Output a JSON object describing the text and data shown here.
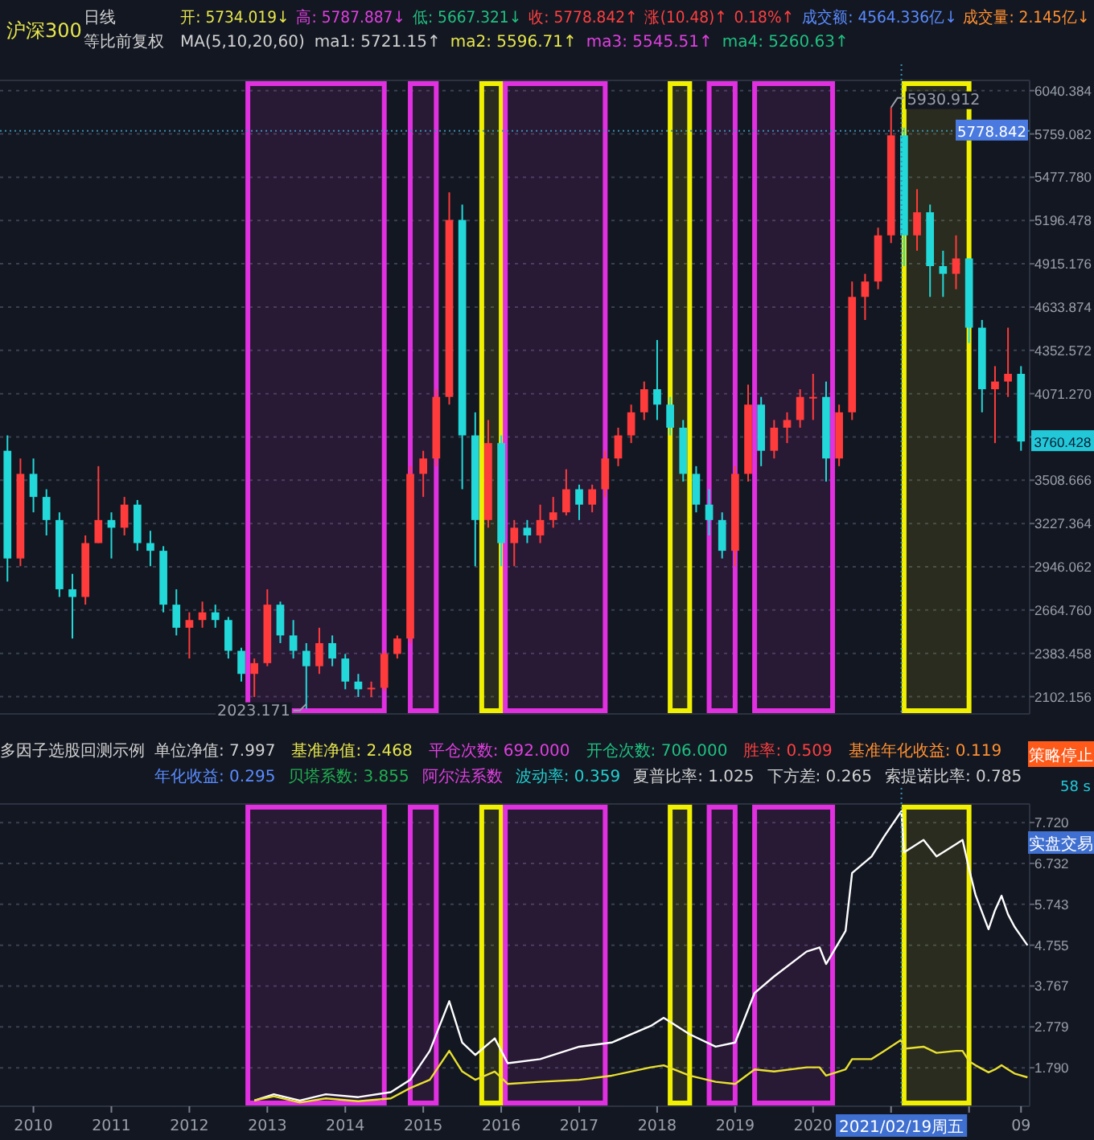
{
  "chart_data": [
    {
      "type": "candlestick",
      "title": "沪深300",
      "subtitle": "日线",
      "annotations": [
        "等比前复权",
        "开: 5734.019↓",
        "高: 5787.887↓",
        "低: 5667.321↓",
        "收: 5778.842↑",
        "涨(10.48)↑",
        "0.18%↑",
        "成交额: 4564.336亿↓",
        "成交量: 2.145亿↓",
        "MA(5,10,20,60)",
        "ma1: 5721.15↑",
        "ma2: 5596.71↑",
        "ma3: 5545.51↑",
        "ma4: 5260.63↑",
        "5930.912",
        "2023.171",
        "3760.428"
      ],
      "x": [
        "2009-09",
        "2009-11",
        "2010-01",
        "2010-03",
        "2010-05",
        "2010-07",
        "2010-09",
        "2010-11",
        "2011-01",
        "2011-03",
        "2011-05",
        "2011-07",
        "2011-09",
        "2011-11",
        "2012-01",
        "2012-03",
        "2012-05",
        "2012-07",
        "2012-09",
        "2012-11",
        "2013-01",
        "2013-03",
        "2013-05",
        "2013-07",
        "2013-09",
        "2013-11",
        "2014-01",
        "2014-03",
        "2014-05",
        "2014-07",
        "2014-09",
        "2014-11",
        "2015-01",
        "2015-03",
        "2015-05",
        "2015-07",
        "2015-09",
        "2015-11",
        "2016-01",
        "2016-03",
        "2016-05",
        "2016-07",
        "2016-09",
        "2016-11",
        "2017-01",
        "2017-03",
        "2017-05",
        "2017-07",
        "2017-09",
        "2017-11",
        "2018-01",
        "2018-03",
        "2018-05",
        "2018-07",
        "2018-09",
        "2018-11",
        "2019-01",
        "2019-03",
        "2019-05",
        "2019-07",
        "2019-09",
        "2019-11",
        "2020-01",
        "2020-03",
        "2020-05",
        "2020-07",
        "2020-09",
        "2020-11",
        "2021-01",
        "2021-03",
        "2021-05",
        "2021-07",
        "2021-09",
        "2021-11",
        "2022-01",
        "2022-03",
        "2022-05",
        "2022-07",
        "2022-09"
      ],
      "ohlc": [
        [
          3700,
          3800,
          2850,
          3000
        ],
        [
          3000,
          3650,
          2950,
          3550
        ],
        [
          3550,
          3650,
          3300,
          3400
        ],
        [
          3400,
          3450,
          3150,
          3250
        ],
        [
          3250,
          3300,
          2750,
          2800
        ],
        [
          2800,
          2900,
          2480,
          2750
        ],
        [
          2750,
          3150,
          2700,
          3100
        ],
        [
          3100,
          3600,
          3100,
          3250
        ],
        [
          3250,
          3300,
          3000,
          3200
        ],
        [
          3200,
          3400,
          3150,
          3350
        ],
        [
          3350,
          3380,
          3050,
          3100
        ],
        [
          3100,
          3180,
          2950,
          3050
        ],
        [
          3050,
          3080,
          2650,
          2700
        ],
        [
          2700,
          2800,
          2500,
          2550
        ],
        [
          2550,
          2650,
          2350,
          2600
        ],
        [
          2600,
          2720,
          2550,
          2650
        ],
        [
          2650,
          2700,
          2550,
          2600
        ],
        [
          2600,
          2620,
          2350,
          2400
        ],
        [
          2400,
          2420,
          2200,
          2250
        ],
        [
          2250,
          2350,
          2100,
          2320
        ],
        [
          2320,
          2800,
          2300,
          2700
        ],
        [
          2700,
          2720,
          2450,
          2500
        ],
        [
          2500,
          2600,
          2350,
          2400
        ],
        [
          2400,
          2450,
          2023.171,
          2300
        ],
        [
          2300,
          2550,
          2250,
          2450
        ],
        [
          2450,
          2500,
          2300,
          2350
        ],
        [
          2350,
          2380,
          2150,
          2200
        ],
        [
          2200,
          2250,
          2100,
          2150
        ],
        [
          2150,
          2200,
          2100,
          2160
        ],
        [
          2160,
          2400,
          2140,
          2380
        ],
        [
          2380,
          2500,
          2350,
          2480
        ],
        [
          2480,
          3600,
          2450,
          3550
        ],
        [
          3550,
          3700,
          3400,
          3650
        ],
        [
          3650,
          4100,
          3600,
          4050
        ],
        [
          4050,
          5380,
          4000,
          5200
        ],
        [
          5200,
          5300,
          3450,
          3800
        ],
        [
          3800,
          3950,
          2950,
          3250
        ],
        [
          3250,
          3900,
          3200,
          3750
        ],
        [
          3750,
          3800,
          2950,
          3100
        ],
        [
          3100,
          3250,
          2950,
          3200
        ],
        [
          3200,
          3250,
          3100,
          3150
        ],
        [
          3150,
          3350,
          3100,
          3250
        ],
        [
          3250,
          3400,
          3200,
          3300
        ],
        [
          3300,
          3580,
          3280,
          3450
        ],
        [
          3450,
          3480,
          3250,
          3350
        ],
        [
          3350,
          3480,
          3300,
          3450
        ],
        [
          3450,
          3700,
          3400,
          3650
        ],
        [
          3650,
          3850,
          3600,
          3800
        ],
        [
          3800,
          4000,
          3750,
          3950
        ],
        [
          3950,
          4150,
          3900,
          4100
        ],
        [
          4100,
          4420,
          3900,
          4000
        ],
        [
          4000,
          4050,
          3800,
          3850
        ],
        [
          3850,
          3900,
          3500,
          3550
        ],
        [
          3550,
          3600,
          3300,
          3350
        ],
        [
          3350,
          3450,
          3150,
          3250
        ],
        [
          3250,
          3300,
          3000,
          3050
        ],
        [
          3050,
          3600,
          2950,
          3550
        ],
        [
          3550,
          4130,
          3500,
          4000
        ],
        [
          4000,
          4050,
          3600,
          3700
        ],
        [
          3700,
          3900,
          3650,
          3850
        ],
        [
          3850,
          3950,
          3750,
          3900
        ],
        [
          3900,
          4100,
          3850,
          4050
        ],
        [
          4050,
          4200,
          3900,
          4050
        ],
        [
          4050,
          4150,
          3500,
          3650
        ],
        [
          3650,
          4000,
          3600,
          3950
        ],
        [
          3950,
          4800,
          3900,
          4700
        ],
        [
          4700,
          4850,
          4550,
          4800
        ],
        [
          4800,
          5150,
          4750,
          5100
        ],
        [
          5100,
          5930.912,
          5050,
          5750
        ],
        [
          5750,
          5800,
          4900,
          5100
        ],
        [
          5100,
          5400,
          5000,
          5250
        ],
        [
          5250,
          5300,
          4700,
          4900
        ],
        [
          4900,
          5000,
          4700,
          4850
        ],
        [
          4850,
          5100,
          4750,
          4950
        ],
        [
          4950,
          4950,
          4400,
          4500
        ],
        [
          4500,
          4550,
          3950,
          4100
        ],
        [
          4100,
          4250,
          3750,
          4150
        ],
        [
          4150,
          4500,
          4050,
          4200
        ],
        [
          4200,
          4250,
          3700,
          3760.428
        ]
      ],
      "xlim": [
        "2009-07-27",
        "2022-10-11"
      ],
      "ylim": [
        1990,
        6107
      ],
      "yticks": [
        2102.156,
        2383.458,
        {
          "value": 2664.76,
          "label": "2664.760"
        },
        2946.062,
        3227.364,
        3508.666,
        {
          "value": 3789.968,
          "label": null
        },
        {
          "value": 4071.27,
          "label": "4071.270"
        },
        4352.572,
        4633.874,
        4915.176,
        5196.478,
        {
          "value": 5477.78,
          "label": "5477.780"
        },
        5759.082,
        6040.384
      ],
      "grid": "y",
      "tick_labels": "y",
      "ref_lines": [
        {
          "axis": "x",
          "value": "2021-02-19",
          "label": null,
          "color": "#3a8fb0",
          "line_style": "dotted"
        },
        {
          "axis": "y",
          "value": 5778.842,
          "label": "5778.842",
          "color": "#3a8fb0",
          "line_style": "dotted"
        }
      ],
      "bands": [
        {
          "axis": "x",
          "from": "2012-10",
          "to": "2014-07",
          "label": null,
          "color": "#e030e0"
        },
        {
          "axis": "x",
          "from": "2014-11",
          "to": "2015-03",
          "label": null,
          "color": "#e030e0"
        },
        {
          "axis": "x",
          "from": "2015-10",
          "to": "2016-01",
          "label": null,
          "color": "#f0f000"
        },
        {
          "axis": "x",
          "from": "2016-01-20",
          "to": "2017-05",
          "label": null,
          "color": "#e030e0"
        },
        {
          "axis": "x",
          "from": "2018-03",
          "to": "2018-06",
          "label": null,
          "color": "#f0f000"
        },
        {
          "axis": "x",
          "from": "2018-09",
          "to": "2019-01",
          "label": null,
          "color": "#e030e0"
        },
        {
          "axis": "x",
          "from": "2019-04",
          "to": "2020-04",
          "label": null,
          "color": "#e030e0"
        },
        {
          "axis": "x",
          "from": "2021-03",
          "to": "2022-01",
          "label": null,
          "color": "#f0f000"
        }
      ]
    },
    {
      "type": "line",
      "title": "多因子选股回测示例",
      "annotations": [
        "单位净值: 7.997",
        "基准净值: 2.468",
        "平仓次数: 692.000",
        "开仓次数: 706.000",
        "胜率: 0.509",
        "基准年化收益: 0.119",
        "年化收益: 0.295",
        "贝塔系数: 3.855",
        "阿尔法系数",
        "波动率: 0.359",
        "夏普比率: 1.025",
        "下方差: 0.265",
        "索提诺比率: 0.785",
        "策略停止",
        "58 s",
        "实盘交易"
      ],
      "series": [
        {
          "color": "#ffffff",
          "x": [
            "2012-11",
            "2013-02",
            "2013-06",
            "2013-10",
            "2014-03",
            "2014-08",
            "2014-11",
            "2015-02",
            "2015-05",
            "2015-07",
            "2015-09",
            "2015-12",
            "2016-02",
            "2016-07",
            "2017-01",
            "2017-06",
            "2017-12",
            "2018-02",
            "2018-06",
            "2018-10",
            "2019-01",
            "2019-04",
            "2019-07",
            "2019-12",
            "2020-02",
            "2020-03",
            "2020-06",
            "2020-07",
            "2020-10",
            "2020-12",
            "2021-02-19",
            "2021-03",
            "2021-06",
            "2021-08",
            "2021-11",
            "2021-12",
            "2022-01",
            "2022-02",
            "2022-04",
            "2022-05",
            "2022-06",
            "2022-07",
            "2022-08",
            "2022-10-01"
          ],
          "values": [
            1.0,
            1.15,
            1.0,
            1.15,
            1.08,
            1.2,
            1.5,
            2.2,
            3.4,
            2.4,
            2.1,
            2.5,
            1.9,
            2.0,
            2.3,
            2.4,
            2.8,
            3.0,
            2.6,
            2.3,
            2.4,
            3.6,
            4.0,
            4.6,
            4.7,
            4.3,
            5.1,
            6.5,
            6.9,
            7.4,
            7.997,
            7.0,
            7.3,
            6.9,
            7.2,
            7.3,
            6.6,
            5.97,
            5.14,
            5.6,
            5.95,
            5.5,
            5.2,
            4.75
          ]
        },
        {
          "color": "#e8e030",
          "x": [
            "2012-11",
            "2013-02",
            "2013-06",
            "2013-10",
            "2014-03",
            "2014-08",
            "2014-11",
            "2015-02",
            "2015-05",
            "2015-07",
            "2015-09",
            "2015-12",
            "2016-02",
            "2016-07",
            "2017-01",
            "2017-06",
            "2017-12",
            "2018-02",
            "2018-06",
            "2018-10",
            "2019-01",
            "2019-04",
            "2019-07",
            "2019-12",
            "2020-02",
            "2020-03",
            "2020-06",
            "2020-07",
            "2020-10",
            "2020-12",
            "2021-02-19",
            "2021-03",
            "2021-06",
            "2021-08",
            "2021-11",
            "2021-12",
            "2022-01",
            "2022-02",
            "2022-04",
            "2022-05",
            "2022-06",
            "2022-07",
            "2022-08",
            "2022-10-01"
          ],
          "values": [
            1.0,
            1.1,
            0.95,
            1.05,
            0.98,
            1.05,
            1.3,
            1.5,
            2.2,
            1.7,
            1.5,
            1.7,
            1.4,
            1.45,
            1.5,
            1.6,
            1.8,
            1.85,
            1.6,
            1.45,
            1.4,
            1.75,
            1.7,
            1.8,
            1.8,
            1.6,
            1.75,
            2.0,
            2.0,
            2.2,
            2.468,
            2.25,
            2.3,
            2.15,
            2.2,
            2.2,
            1.95,
            1.85,
            1.68,
            1.75,
            1.85,
            1.75,
            1.65,
            1.56
          ]
        }
      ],
      "xlim": [
        "2009-07-27",
        "2022-10-11"
      ],
      "ylim": [
        0.86,
        8.17
      ],
      "yticks": [
        {
          "value": 1.79,
          "label": "1.790"
        },
        2.779,
        3.767,
        4.755,
        5.743,
        6.732,
        {
          "value": 7.72,
          "label": "7.720"
        }
      ],
      "xticks": [
        {
          "value": "2010",
          "label": "2010"
        },
        {
          "value": "2011",
          "label": "2011"
        },
        {
          "value": "2012",
          "label": "2012"
        },
        {
          "value": "2013",
          "label": "2013"
        },
        {
          "value": "2014",
          "label": "2014"
        },
        {
          "value": "2015",
          "label": "2015"
        },
        {
          "value": "2016",
          "label": "2016"
        },
        {
          "value": "2017",
          "label": "2017"
        },
        {
          "value": "2018",
          "label": "2018"
        },
        {
          "value": "2019",
          "label": "2019"
        },
        {
          "value": "2020",
          "label": "2020"
        },
        {
          "value": "2021",
          "label": null
        },
        {
          "value": "2022",
          "label": null
        },
        {
          "value": "2022-09",
          "label": "09"
        }
      ],
      "grid": "y",
      "line_style": "solid",
      "marker": "none",
      "ref_lines": [
        {
          "axis": "x",
          "value": "2021-02-19",
          "label": "2021/02/19周五",
          "color": "#3a8fb0",
          "line_style": "dotted"
        }
      ],
      "bands": [
        {
          "axis": "x",
          "from": "2012-10",
          "to": "2014-07",
          "label": null,
          "color": "#e030e0"
        },
        {
          "axis": "x",
          "from": "2014-11",
          "to": "2015-03",
          "label": null,
          "color": "#e030e0"
        },
        {
          "axis": "x",
          "from": "2015-10",
          "to": "2016-01",
          "label": null,
          "color": "#f0f000"
        },
        {
          "axis": "x",
          "from": "2016-01-20",
          "to": "2017-05",
          "label": null,
          "color": "#e030e0"
        },
        {
          "axis": "x",
          "from": "2018-03",
          "to": "2018-06",
          "label": null,
          "color": "#f0f000"
        },
        {
          "axis": "x",
          "from": "2018-09",
          "to": "2019-01",
          "label": null,
          "color": "#e030e0"
        },
        {
          "axis": "x",
          "from": "2019-04",
          "to": "2020-04",
          "label": null,
          "color": "#e030e0"
        },
        {
          "axis": "x",
          "from": "2021-03",
          "to": "2022-01",
          "label": null,
          "color": "#f0f000"
        }
      ]
    }
  ]
}
